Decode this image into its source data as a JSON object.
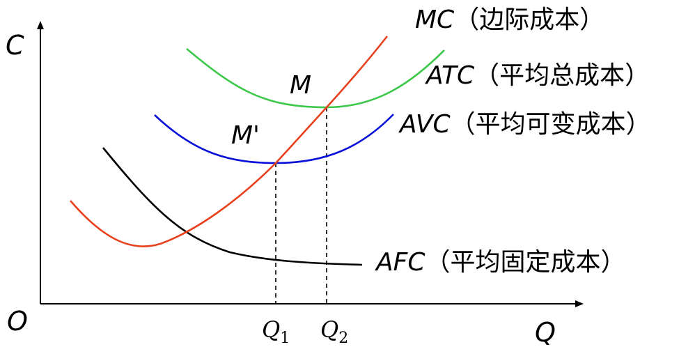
{
  "axes": {
    "y_label": "C",
    "x_label": "Q",
    "origin_label": "O"
  },
  "curves": {
    "mc": {
      "abbr": "MC",
      "desc": "（边际成本）",
      "color": "#e8401c"
    },
    "atc": {
      "abbr": "ATC",
      "desc": "（平均总成本）",
      "color": "#3cc84a"
    },
    "avc": {
      "abbr": "AVC",
      "desc": "（平均可变成本）",
      "color": "#0a12d8"
    },
    "afc": {
      "abbr": "AFC",
      "desc": "（平均固定成本）",
      "color": "#000000"
    }
  },
  "points": {
    "m": "M",
    "m_prime": "M'"
  },
  "quantities": {
    "q1": {
      "base": "Q",
      "sub": "1"
    },
    "q2": {
      "base": "Q",
      "sub": "2"
    }
  }
}
